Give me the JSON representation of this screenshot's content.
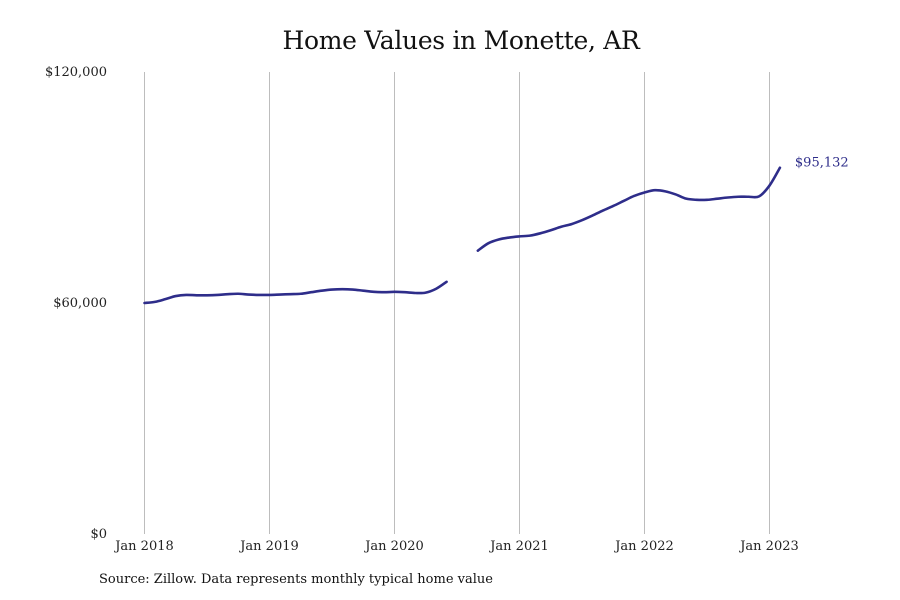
{
  "title": "Home Values in Monette, AR",
  "source": "Source: Zillow. Data represents monthly typical home value",
  "colors": {
    "line": "#2e2d8a",
    "grid": "#bdbdbd",
    "text": "#222222"
  },
  "chart_data": {
    "type": "line",
    "title": "Home Values in Monette, AR",
    "xlabel": "",
    "ylabel": "",
    "grid": "vertical",
    "x_ticks": [
      "Jan 2018",
      "Jan 2019",
      "Jan 2020",
      "Jan 2021",
      "Jan 2022",
      "Jan 2023"
    ],
    "y_ticks": [
      {
        "value": 0,
        "label": "$0"
      },
      {
        "value": 60000,
        "label": "$60,000"
      },
      {
        "value": 120000,
        "label": "$120,000"
      }
    ],
    "ylim": [
      0,
      120000
    ],
    "xlim": [
      "2018-01",
      "2023-06"
    ],
    "series": [
      {
        "end_label": "$95,132",
        "segments": [
          [
            {
              "x": "2018-01",
              "y": 60000
            },
            {
              "x": "2018-02",
              "y": 60300
            },
            {
              "x": "2018-03",
              "y": 61000
            },
            {
              "x": "2018-04",
              "y": 61800
            },
            {
              "x": "2018-05",
              "y": 62100
            },
            {
              "x": "2018-06",
              "y": 62000
            },
            {
              "x": "2018-07",
              "y": 62000
            },
            {
              "x": "2018-08",
              "y": 62100
            },
            {
              "x": "2018-09",
              "y": 62300
            },
            {
              "x": "2018-10",
              "y": 62400
            },
            {
              "x": "2018-11",
              "y": 62200
            },
            {
              "x": "2018-12",
              "y": 62100
            },
            {
              "x": "2019-01",
              "y": 62100
            },
            {
              "x": "2019-02",
              "y": 62200
            },
            {
              "x": "2019-03",
              "y": 62300
            },
            {
              "x": "2019-04",
              "y": 62400
            },
            {
              "x": "2019-05",
              "y": 62800
            },
            {
              "x": "2019-06",
              "y": 63200
            },
            {
              "x": "2019-07",
              "y": 63500
            },
            {
              "x": "2019-08",
              "y": 63600
            },
            {
              "x": "2019-09",
              "y": 63500
            },
            {
              "x": "2019-10",
              "y": 63200
            },
            {
              "x": "2019-11",
              "y": 62900
            },
            {
              "x": "2019-12",
              "y": 62800
            },
            {
              "x": "2020-01",
              "y": 62900
            },
            {
              "x": "2020-02",
              "y": 62800
            },
            {
              "x": "2020-03",
              "y": 62600
            },
            {
              "x": "2020-04",
              "y": 62700
            },
            {
              "x": "2020-05",
              "y": 63700
            },
            {
              "x": "2020-06",
              "y": 65500
            }
          ],
          [
            {
              "x": "2020-09",
              "y": 73600
            },
            {
              "x": "2020-10",
              "y": 75500
            },
            {
              "x": "2020-11",
              "y": 76500
            },
            {
              "x": "2020-12",
              "y": 77000
            },
            {
              "x": "2021-01",
              "y": 77300
            },
            {
              "x": "2021-02",
              "y": 77500
            },
            {
              "x": "2021-03",
              "y": 78100
            },
            {
              "x": "2021-04",
              "y": 78900
            },
            {
              "x": "2021-05",
              "y": 79800
            },
            {
              "x": "2021-06",
              "y": 80500
            },
            {
              "x": "2021-07",
              "y": 81500
            },
            {
              "x": "2021-08",
              "y": 82700
            },
            {
              "x": "2021-09",
              "y": 84000
            },
            {
              "x": "2021-10",
              "y": 85200
            },
            {
              "x": "2021-11",
              "y": 86500
            },
            {
              "x": "2021-12",
              "y": 87800
            },
            {
              "x": "2022-01",
              "y": 88700
            },
            {
              "x": "2022-02",
              "y": 89300
            },
            {
              "x": "2022-03",
              "y": 89000
            },
            {
              "x": "2022-04",
              "y": 88200
            },
            {
              "x": "2022-05",
              "y": 87100
            },
            {
              "x": "2022-06",
              "y": 86800
            },
            {
              "x": "2022-07",
              "y": 86800
            },
            {
              "x": "2022-08",
              "y": 87100
            },
            {
              "x": "2022-09",
              "y": 87400
            },
            {
              "x": "2022-10",
              "y": 87600
            },
            {
              "x": "2022-11",
              "y": 87600
            },
            {
              "x": "2022-12",
              "y": 87700
            },
            {
              "x": "2023-01",
              "y": 90500
            },
            {
              "x": "2023-02",
              "y": 95132
            }
          ]
        ]
      }
    ]
  }
}
